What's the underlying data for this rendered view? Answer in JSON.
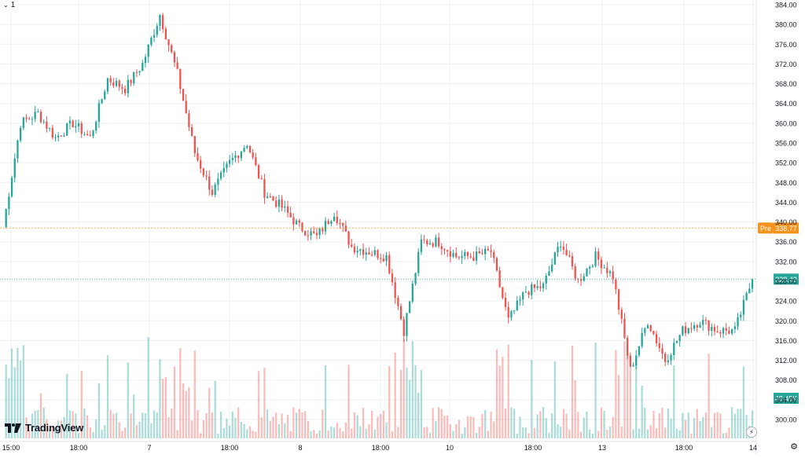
{
  "toolbar": {
    "interval_chevron": "⌄",
    "interval_label": "1"
  },
  "branding": {
    "logo_text": "TradingView"
  },
  "icons": {
    "flash": "⚡",
    "settings": "⚙"
  },
  "colors": {
    "up": "#26a69a",
    "down": "#ef5350",
    "pre": "#f7931a",
    "grid": "#eef0f3"
  },
  "price_axis": {
    "ticks": [
      "384.00",
      "380.00",
      "376.00",
      "372.00",
      "368.00",
      "364.00",
      "360.00",
      "356.00",
      "352.00",
      "348.00",
      "344.00",
      "340.00",
      "336.00",
      "332.00",
      "328.00",
      "324.00",
      "320.00",
      "316.00",
      "312.00",
      "308.00",
      "304.00",
      "300.00"
    ]
  },
  "time_axis": {
    "ticks": [
      "15:00",
      "18:00",
      "7",
      "18:00",
      "8",
      "18:00",
      "10",
      "18:00",
      "13",
      "18:00",
      "14"
    ]
  },
  "labels": {
    "pre_tag": "Pre",
    "pre_price": "338.77",
    "last_price": "328.43",
    "volume_value": "48.45K"
  },
  "chart_data": {
    "type": "candlestick",
    "ylim": [
      300,
      384
    ],
    "grid": true,
    "price_path": [
      {
        "t": "15:00",
        "price": 339
      },
      {
        "t": "",
        "price": 360
      },
      {
        "t": "",
        "price": 362
      },
      {
        "t": "",
        "price": 357
      },
      {
        "t": "",
        "price": 360
      },
      {
        "t": "18:00",
        "price": 357
      },
      {
        "t": "",
        "price": 369
      },
      {
        "t": "",
        "price": 367
      },
      {
        "t": "",
        "price": 372
      },
      {
        "t": "",
        "price": 382
      },
      {
        "t": "7",
        "price": 370
      },
      {
        "t": "",
        "price": 354
      },
      {
        "t": "",
        "price": 346
      },
      {
        "t": "",
        "price": 352
      },
      {
        "t": "18:00",
        "price": 356
      },
      {
        "t": "",
        "price": 346
      },
      {
        "t": "",
        "price": 343
      },
      {
        "t": "",
        "price": 339
      },
      {
        "t": "",
        "price": 337
      },
      {
        "t": "",
        "price": 342
      },
      {
        "t": "8",
        "price": 335
      },
      {
        "t": "",
        "price": 334
      },
      {
        "t": "",
        "price": 333
      },
      {
        "t": "",
        "price": 318
      },
      {
        "t": "18:00",
        "price": 336
      },
      {
        "t": "",
        "price": 336
      },
      {
        "t": "",
        "price": 333
      },
      {
        "t": "",
        "price": 333
      },
      {
        "t": "10",
        "price": 334
      },
      {
        "t": "",
        "price": 320
      },
      {
        "t": "",
        "price": 326
      },
      {
        "t": "",
        "price": 327
      },
      {
        "t": "18:00",
        "price": 336
      },
      {
        "t": "",
        "price": 328
      },
      {
        "t": "",
        "price": 333
      },
      {
        "t": "",
        "price": 329
      },
      {
        "t": "13",
        "price": 310
      },
      {
        "t": "",
        "price": 320
      },
      {
        "t": "",
        "price": 312
      },
      {
        "t": "",
        "price": 318
      },
      {
        "t": "18:00",
        "price": 320
      },
      {
        "t": "",
        "price": 318
      },
      {
        "t": "",
        "price": 318
      },
      {
        "t": "14",
        "price": 328.43
      }
    ],
    "volume_label": "48.45K",
    "premarket_price": 338.77,
    "last_price": 328.43
  }
}
